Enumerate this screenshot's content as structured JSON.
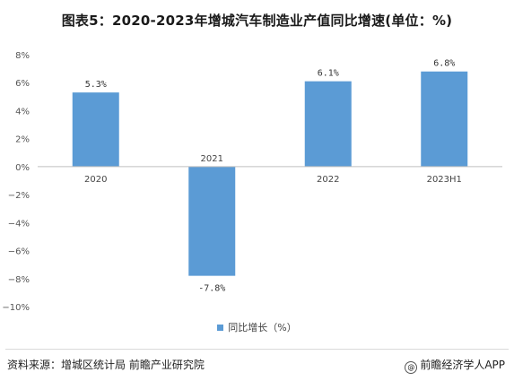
{
  "footer": {
    "source": "资料来源：增城区统计局 前瞻产业研究院",
    "brand": "前瞻经济学人APP",
    "brand_icon": "at-sign-icon"
  },
  "chart_data": {
    "type": "bar",
    "title": "图表5：2020-2023年增城汽车制造业产值同比增速(单位：%)",
    "categories": [
      "2020",
      "2021",
      "2022",
      "2023H1"
    ],
    "series": [
      {
        "name": "同比增长（%）",
        "values": [
          5.3,
          -7.8,
          6.1,
          6.8
        ],
        "data_labels": [
          "5.3%",
          "-7.8%",
          "6.1%",
          "6.8%"
        ],
        "color": "#5b9bd5"
      }
    ],
    "ylim": [
      -10,
      8
    ],
    "y_ticks": [
      8,
      6,
      4,
      2,
      0,
      -2,
      -4,
      -6,
      -8,
      -10
    ],
    "y_tick_labels": [
      "8%",
      "6%",
      "4%",
      "2%",
      "0%",
      "−2%",
      "−4%",
      "−6%",
      "−8%",
      "−10%"
    ],
    "grid": false,
    "legend_position": "bottom",
    "xlabel": "",
    "ylabel": ""
  }
}
